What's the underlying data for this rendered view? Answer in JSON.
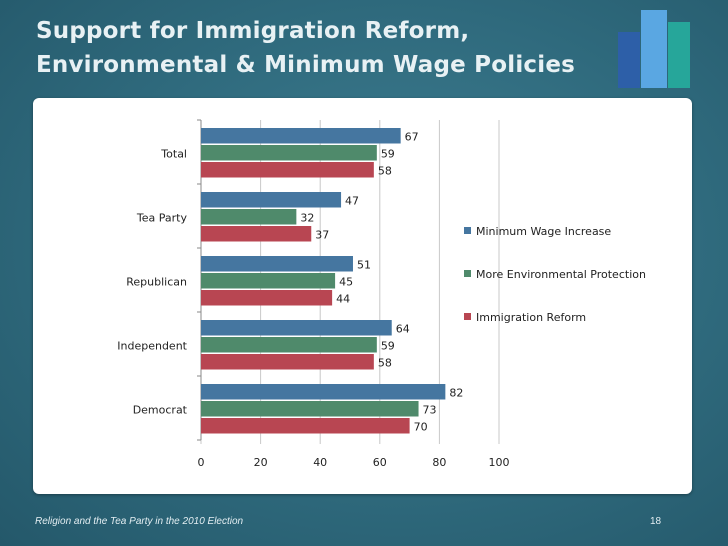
{
  "slide": {
    "title_line1": "Support for Immigration Reform,",
    "title_line2": "Environmental & Minimum Wage Policies",
    "footer_text": "Religion and the Tea Party in the 2010 Election",
    "page_number": "18"
  },
  "colors": {
    "minimum_wage": "#4576a0",
    "environment": "#4f8a6b",
    "immigration": "#b84652",
    "logo_dark": "#2d5fa8",
    "logo_light": "#5aa7e2",
    "logo_teal": "#26a69a"
  },
  "chart_data": {
    "type": "bar",
    "orientation": "horizontal",
    "title": "",
    "xlabel": "",
    "ylabel": "",
    "xlim": [
      0,
      100
    ],
    "x_ticks": [
      "0",
      "20",
      "40",
      "60",
      "80",
      "100"
    ],
    "categories": [
      "Total",
      "Tea Party",
      "Republican",
      "Independent",
      "Democrat"
    ],
    "series": [
      {
        "name": "Minimum Wage Increase",
        "values": [
          67,
          47,
          51,
          64,
          82
        ]
      },
      {
        "name": "More Environmental Protection",
        "values": [
          59,
          32,
          45,
          59,
          73
        ]
      },
      {
        "name": "Immigration Reform",
        "values": [
          58,
          37,
          44,
          58,
          70
        ]
      }
    ],
    "legend_position": "right"
  }
}
